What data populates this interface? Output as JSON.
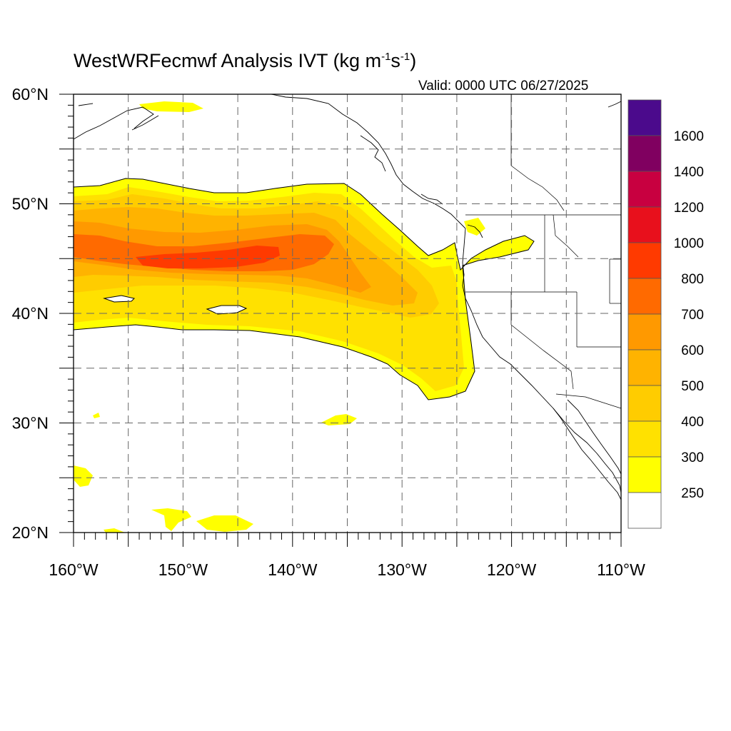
{
  "title": {
    "main": "WestWRFecmwf Analysis IVT (kg m",
    "sup1": "-1",
    "mid": "s",
    "sup2": "-1",
    "end": ")"
  },
  "valid_time": "Valid: 0000 UTC 06/27/2025",
  "map": {
    "lon_range": [
      -160,
      -110
    ],
    "lat_range": [
      20,
      60
    ],
    "lon_labels": [
      "160°W",
      "150°W",
      "140°W",
      "130°W",
      "120°W",
      "110°W"
    ],
    "lat_labels": [
      "60°N",
      "50°N",
      "40°N",
      "30°N",
      "20°N"
    ],
    "grid_dashed": true,
    "gridlines_lon": [
      -155,
      -150,
      -145,
      -140,
      -135,
      -130,
      -125,
      -120,
      -115
    ],
    "gridlines_lat": [
      25,
      30,
      35,
      40,
      45,
      50,
      55
    ]
  },
  "colorbar": {
    "labels": [
      "1600",
      "1400",
      "1200",
      "1000",
      "800",
      "700",
      "600",
      "500",
      "400",
      "300",
      "250"
    ],
    "colors": [
      "#4b0a8c",
      "#800060",
      "#c80040",
      "#e8101c",
      "#ff3a00",
      "#ff6a00",
      "#ff9900",
      "#ffb300",
      "#ffcc00",
      "#ffe100",
      "#ffff00",
      "#ffffff"
    ]
  },
  "icons": [
    "coastline-icon",
    "state-border-icon"
  ]
}
